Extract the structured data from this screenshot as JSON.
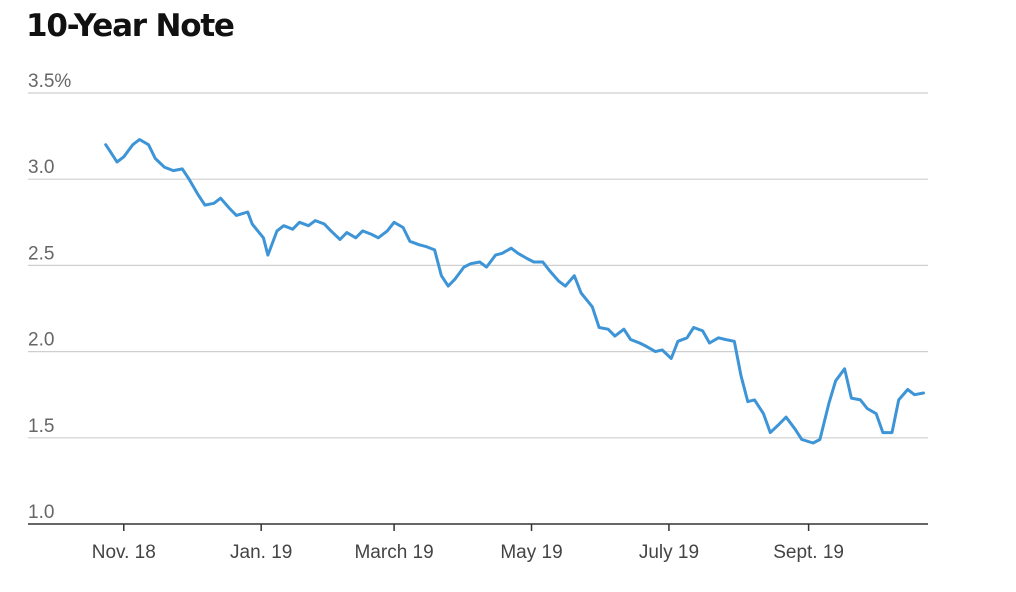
{
  "chart_data": {
    "type": "line",
    "title": "10-Year Note",
    "xlabel": "",
    "ylabel": "",
    "ylim": [
      1.0,
      3.5
    ],
    "xlim": [
      "2018-10-25",
      "2019-10-24"
    ],
    "y_ticks": [
      "3.5%",
      "3.0",
      "2.5",
      "2.0",
      "1.5",
      "1.0"
    ],
    "y_tick_values": [
      3.5,
      3.0,
      2.5,
      2.0,
      1.5,
      1.0
    ],
    "x_ticks": [
      "Nov. 18",
      "Jan. 19",
      "March 19",
      "May 19",
      "July 19",
      "Sept. 19"
    ],
    "x_tick_dates": [
      "2018-11-01",
      "2019-01-01",
      "2019-03-01",
      "2019-05-01",
      "2019-07-01",
      "2019-09-01"
    ],
    "grid": true,
    "colors": {
      "series": "#3d94d6"
    },
    "series": [
      {
        "x": [
          "2018-10-24",
          "2018-10-26",
          "2018-10-29",
          "2018-11-01",
          "2018-11-05",
          "2018-11-08",
          "2018-11-12",
          "2018-11-15",
          "2018-11-19",
          "2018-11-23",
          "2018-11-27",
          "2018-11-30",
          "2018-12-04",
          "2018-12-07",
          "2018-12-11",
          "2018-12-14",
          "2018-12-18",
          "2018-12-21",
          "2018-12-26",
          "2018-12-28",
          "2019-01-02",
          "2019-01-04",
          "2019-01-08",
          "2019-01-11",
          "2019-01-15",
          "2019-01-18",
          "2019-01-22",
          "2019-01-25",
          "2019-01-29",
          "2019-02-01",
          "2019-02-05",
          "2019-02-08",
          "2019-02-12",
          "2019-02-15",
          "2019-02-19",
          "2019-02-22",
          "2019-02-26",
          "2019-03-01",
          "2019-03-05",
          "2019-03-08",
          "2019-03-12",
          "2019-03-15",
          "2019-03-19",
          "2019-03-22",
          "2019-03-25",
          "2019-03-28",
          "2019-04-01",
          "2019-04-04",
          "2019-04-08",
          "2019-04-11",
          "2019-04-15",
          "2019-04-18",
          "2019-04-22",
          "2019-04-25",
          "2019-04-29",
          "2019-05-02",
          "2019-05-06",
          "2019-05-09",
          "2019-05-13",
          "2019-05-16",
          "2019-05-20",
          "2019-05-23",
          "2019-05-28",
          "2019-05-31",
          "2019-06-04",
          "2019-06-07",
          "2019-06-11",
          "2019-06-14",
          "2019-06-18",
          "2019-06-21",
          "2019-06-25",
          "2019-06-28",
          "2019-07-02",
          "2019-07-05",
          "2019-07-09",
          "2019-07-12",
          "2019-07-16",
          "2019-07-19",
          "2019-07-23",
          "2019-07-26",
          "2019-07-30",
          "2019-08-02",
          "2019-08-05",
          "2019-08-08",
          "2019-08-12",
          "2019-08-15",
          "2019-08-19",
          "2019-08-22",
          "2019-08-26",
          "2019-08-29",
          "2019-09-03",
          "2019-09-06",
          "2019-09-10",
          "2019-09-13",
          "2019-09-17",
          "2019-09-20",
          "2019-09-24",
          "2019-09-27",
          "2019-10-01",
          "2019-10-04",
          "2019-10-08",
          "2019-10-11",
          "2019-10-15",
          "2019-10-18",
          "2019-10-22"
        ],
        "values": [
          3.2,
          3.16,
          3.1,
          3.13,
          3.2,
          3.23,
          3.2,
          3.12,
          3.07,
          3.05,
          3.06,
          3.0,
          2.91,
          2.85,
          2.86,
          2.89,
          2.83,
          2.79,
          2.81,
          2.74,
          2.66,
          2.56,
          2.7,
          2.73,
          2.71,
          2.75,
          2.73,
          2.76,
          2.74,
          2.7,
          2.65,
          2.69,
          2.66,
          2.7,
          2.68,
          2.66,
          2.7,
          2.75,
          2.72,
          2.64,
          2.62,
          2.61,
          2.59,
          2.44,
          2.38,
          2.42,
          2.49,
          2.51,
          2.52,
          2.49,
          2.56,
          2.57,
          2.6,
          2.57,
          2.54,
          2.52,
          2.52,
          2.47,
          2.41,
          2.38,
          2.44,
          2.34,
          2.26,
          2.14,
          2.13,
          2.09,
          2.13,
          2.07,
          2.05,
          2.03,
          2.0,
          2.01,
          1.96,
          2.06,
          2.08,
          2.14,
          2.12,
          2.05,
          2.08,
          2.07,
          2.06,
          1.86,
          1.71,
          1.72,
          1.64,
          1.53,
          1.58,
          1.62,
          1.55,
          1.49,
          1.47,
          1.49,
          1.7,
          1.83,
          1.9,
          1.73,
          1.72,
          1.67,
          1.64,
          1.53,
          1.53,
          1.72,
          1.78,
          1.75,
          1.76
        ]
      }
    ]
  }
}
